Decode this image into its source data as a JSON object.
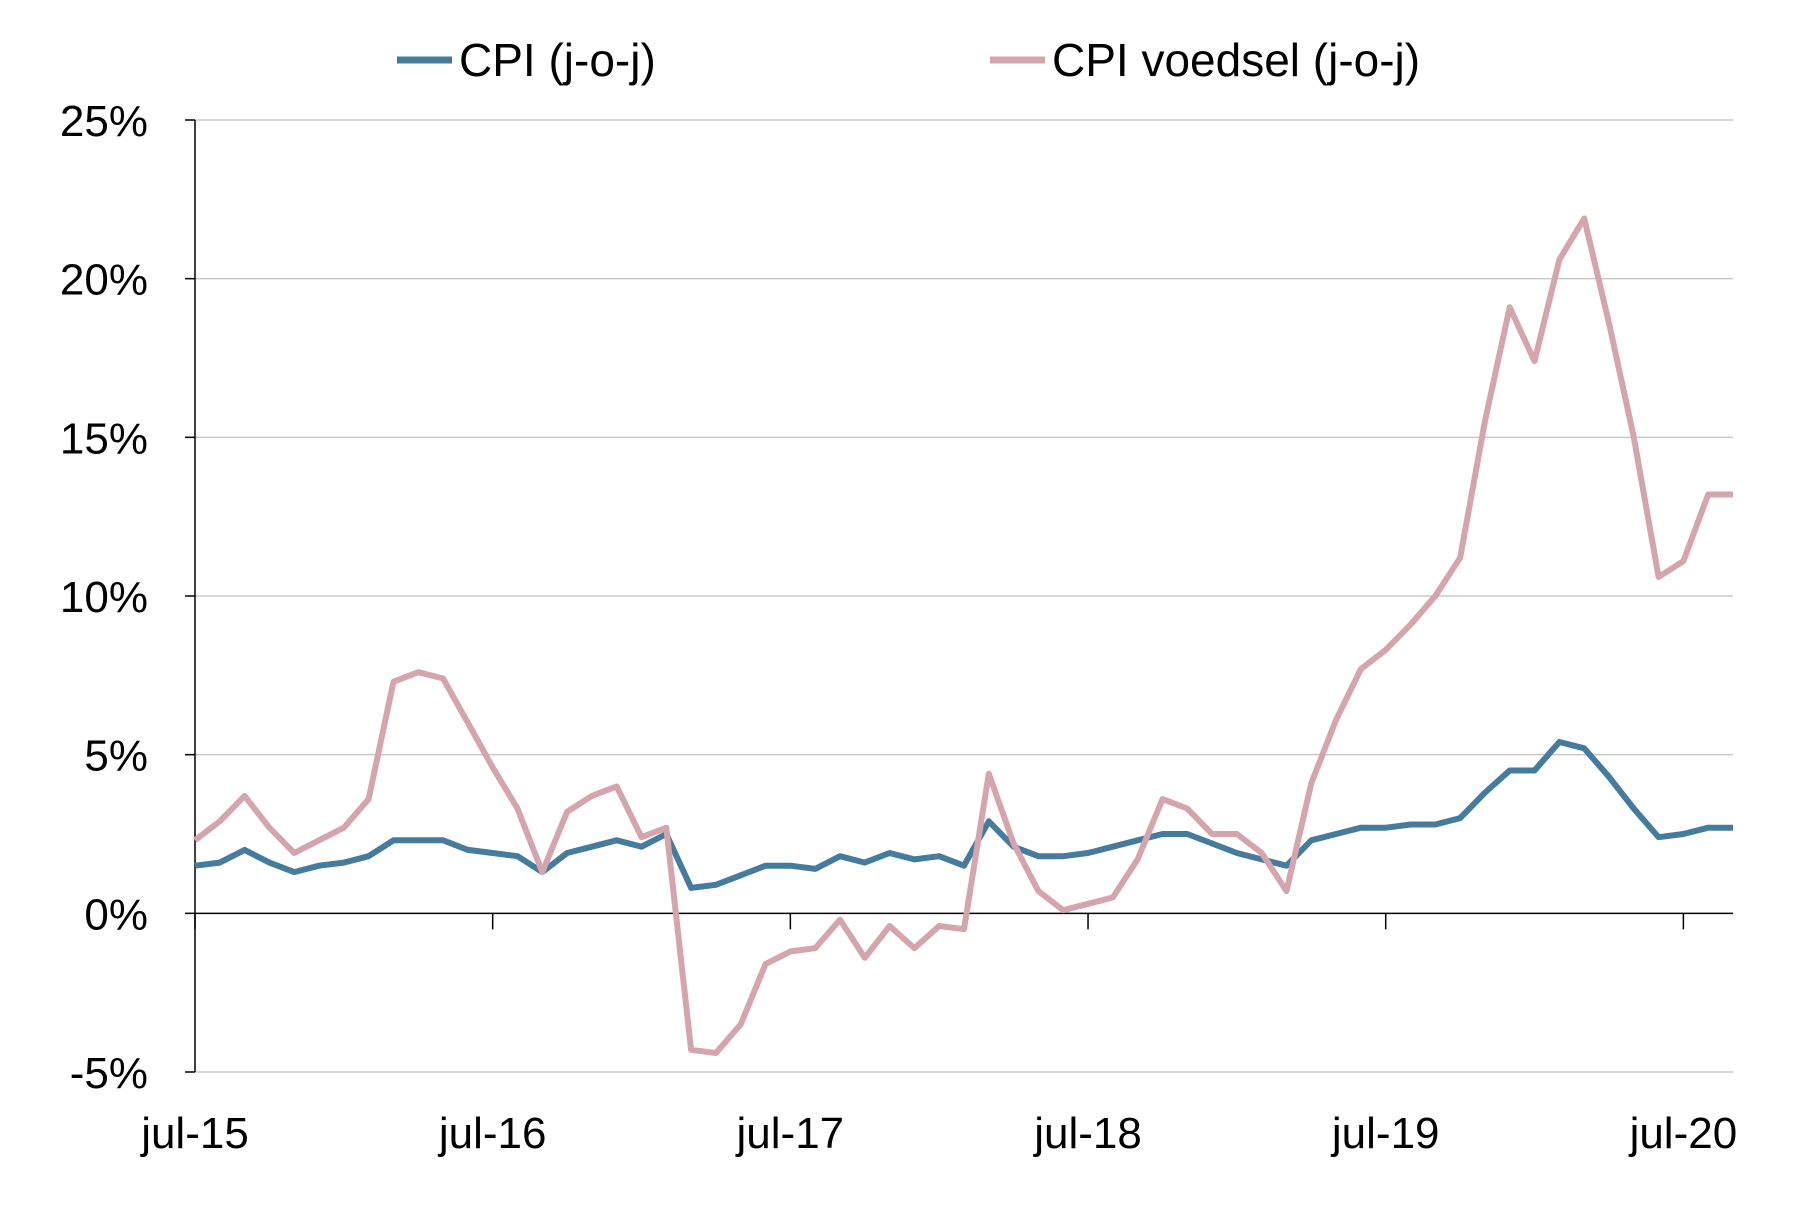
{
  "chart_data": {
    "type": "line",
    "title": "",
    "xlabel": "",
    "ylabel": "",
    "x_tick_labels": [
      "jul-15",
      "jul-16",
      "jul-17",
      "jul-18",
      "jul-19",
      "jul-20"
    ],
    "y_tick_labels": [
      "-5%",
      "0%",
      "5%",
      "10%",
      "15%",
      "20%",
      "25%"
    ],
    "ylim": [
      -5,
      25
    ],
    "y_unit": "%",
    "grid": "horizontal",
    "legend_position": "top",
    "x_start": "jul-15",
    "x_end": "jul-20",
    "series": [
      {
        "name": "CPI (j-o-j)",
        "color": "#457b9d",
        "values": [
          1.5,
          1.6,
          2.0,
          1.6,
          1.3,
          1.5,
          1.6,
          1.8,
          2.3,
          2.3,
          2.3,
          2.0,
          1.9,
          1.8,
          1.3,
          1.9,
          2.1,
          2.3,
          2.1,
          2.5,
          0.8,
          0.9,
          1.2,
          1.5,
          1.5,
          1.4,
          1.8,
          1.6,
          1.9,
          1.7,
          1.8,
          1.5,
          2.9,
          2.1,
          1.8,
          1.8,
          1.9,
          2.1,
          2.3,
          2.5,
          2.5,
          2.2,
          1.9,
          1.7,
          1.5,
          2.3,
          2.5,
          2.7,
          2.7,
          2.8,
          2.8,
          3.0,
          3.8,
          4.5,
          4.5,
          5.4,
          5.2,
          4.3,
          3.3,
          2.4,
          2.5,
          2.7,
          2.7
        ]
      },
      {
        "name": "CPI voedsel (j-o-j)",
        "color": "#d4a5ad",
        "values": [
          2.3,
          2.9,
          3.7,
          2.7,
          1.9,
          2.3,
          2.7,
          3.6,
          7.3,
          7.6,
          7.4,
          6.0,
          4.6,
          3.3,
          1.3,
          3.2,
          3.7,
          4.0,
          2.4,
          2.7,
          -4.3,
          -4.4,
          -3.5,
          -1.6,
          -1.2,
          -1.1,
          -0.2,
          -1.4,
          -0.4,
          -1.1,
          -0.4,
          -0.5,
          4.4,
          2.2,
          0.7,
          0.1,
          0.3,
          0.5,
          1.7,
          3.6,
          3.3,
          2.5,
          2.5,
          1.9,
          0.7,
          4.1,
          6.1,
          7.7,
          8.3,
          9.1,
          10.0,
          11.2,
          15.5,
          19.1,
          17.4,
          20.6,
          21.9,
          18.6,
          15.0,
          10.6,
          11.1,
          13.2,
          13.2
        ]
      }
    ]
  }
}
